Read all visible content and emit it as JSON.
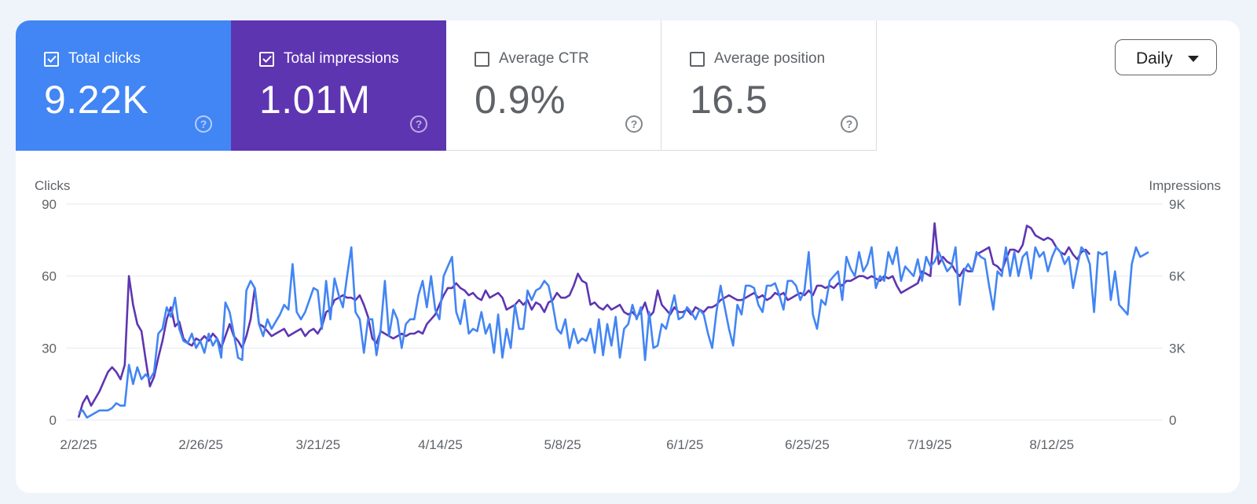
{
  "tiles": [
    {
      "label": "Total clicks",
      "value": "9.22K",
      "active": true,
      "color": "#4285f4"
    },
    {
      "label": "Total impressions",
      "value": "1.01M",
      "active": true,
      "color": "#5e35b1"
    },
    {
      "label": "Average CTR",
      "value": "0.9%",
      "active": false,
      "color": "#ffffff"
    },
    {
      "label": "Average position",
      "value": "16.5",
      "active": false,
      "color": "#ffffff"
    }
  ],
  "icons": {
    "checkbox": "checkbox-icon",
    "help": "help-icon",
    "dropdown": "caret-down-icon"
  },
  "help_glyph": "?",
  "granularity": {
    "selected": "Daily"
  },
  "chart_data": {
    "type": "line",
    "x_start": "2/2/25",
    "x_end": "8/31/25",
    "x_ticks": [
      "2/2/25",
      "2/26/25",
      "3/21/25",
      "4/14/25",
      "5/8/25",
      "6/1/25",
      "6/25/25",
      "7/19/25",
      "8/12/25"
    ],
    "left_axis": {
      "title": "Clicks",
      "ticks": [
        "0",
        "30",
        "60",
        "90"
      ],
      "range": [
        0,
        90
      ]
    },
    "right_axis": {
      "title": "Impressions",
      "ticks": [
        "0",
        "3K",
        "6K",
        "9K"
      ],
      "range": [
        0,
        9000
      ]
    },
    "grid": true,
    "colors": {
      "clicks": "#4285f4",
      "impressions": "#5e35b1"
    },
    "series": [
      {
        "name": "Total clicks",
        "axis": "left",
        "values": [
          3,
          4,
          1,
          2,
          3,
          4,
          4,
          4,
          5,
          7,
          6,
          6,
          23,
          15,
          22,
          17,
          19,
          17,
          20,
          36,
          38,
          47,
          43,
          51,
          38,
          33,
          32,
          36,
          30,
          33,
          28,
          36,
          31,
          34,
          26,
          49,
          45,
          36,
          26,
          25,
          54,
          58,
          55,
          40,
          35,
          42,
          38,
          41,
          44,
          48,
          46,
          65,
          45,
          42,
          45,
          50,
          55,
          54,
          38,
          58,
          42,
          59,
          52,
          47,
          60,
          72,
          45,
          42,
          28,
          42,
          42,
          27,
          38,
          58,
          35,
          46,
          42,
          30,
          40,
          42,
          42,
          52,
          58,
          47,
          60,
          46,
          42,
          60,
          64,
          68,
          45,
          40,
          50,
          36,
          38,
          37,
          45,
          36,
          40,
          28,
          44,
          26,
          38,
          30,
          48,
          38,
          38,
          54,
          50,
          54,
          55,
          58,
          56,
          48,
          38,
          36,
          42,
          30,
          38,
          32,
          34,
          33,
          38,
          28,
          42,
          27,
          40,
          31,
          43,
          26,
          38,
          40,
          48,
          42,
          47,
          25,
          45,
          30,
          31,
          40,
          38,
          45,
          52,
          42,
          43,
          47,
          45,
          42,
          46,
          44,
          36,
          30,
          45,
          56,
          47,
          38,
          31,
          48,
          44,
          56,
          56,
          55,
          48,
          45,
          56,
          56,
          57,
          52,
          46,
          58,
          58,
          56,
          50,
          54,
          70,
          44,
          38,
          50,
          48,
          58,
          60,
          62,
          50,
          68,
          63,
          60,
          70,
          62,
          65,
          72,
          55,
          60,
          58,
          70,
          65,
          72,
          58,
          64,
          62,
          60,
          67,
          58,
          68,
          64,
          66,
          70,
          66,
          62,
          64,
          72,
          48,
          62,
          65,
          62,
          70,
          68,
          67,
          56,
          46,
          62,
          60,
          72,
          60,
          70,
          60,
          68,
          70,
          59,
          72,
          68,
          70,
          62,
          68,
          72,
          70,
          65,
          68,
          55,
          64,
          72,
          70,
          65,
          45,
          70,
          69,
          70,
          50,
          62,
          48,
          46,
          44,
          65,
          72,
          68,
          69,
          70
        ]
      },
      {
        "name": "Total impressions",
        "axis": "right",
        "values": [
          100,
          700,
          1000,
          600,
          900,
          1200,
          1600,
          2000,
          2200,
          2000,
          1700,
          2300,
          6000,
          4800,
          4000,
          3700,
          2500,
          1400,
          1800,
          2600,
          3300,
          4200,
          4700,
          3900,
          4100,
          3400,
          3200,
          3100,
          3400,
          3300,
          3500,
          3300,
          3600,
          3400,
          3000,
          3500,
          4000,
          3500,
          3300,
          3000,
          3500,
          4200,
          5500,
          4000,
          3900,
          3700,
          3500,
          3600,
          3700,
          3800,
          3500,
          3600,
          3700,
          3800,
          3500,
          3700,
          3800,
          3600,
          3900,
          4500,
          4600,
          5000,
          5100,
          5200,
          5100,
          5100,
          5000,
          5200,
          4800,
          4300,
          3400,
          3200,
          3700,
          3600,
          3500,
          3400,
          3500,
          3600,
          3500,
          3600,
          3600,
          3700,
          3600,
          4000,
          4200,
          4400,
          4800,
          5200,
          5500,
          5500,
          5700,
          5500,
          5400,
          5200,
          5300,
          5100,
          5000,
          5400,
          5100,
          5200,
          5300,
          5100,
          4600,
          4700,
          4800,
          5000,
          4800,
          5000,
          4600,
          4900,
          4800,
          4500,
          4900,
          5000,
          5300,
          5100,
          5100,
          5200,
          5600,
          6100,
          5800,
          5700,
          4800,
          4900,
          4700,
          4600,
          4800,
          4600,
          4700,
          4800,
          4500,
          4400,
          4500,
          4300,
          4500,
          4900,
          4300,
          4500,
          5400,
          4800,
          4600,
          4400,
          4700,
          4500,
          4500,
          4600,
          4400,
          4700,
          4600,
          4500,
          4700,
          4700,
          4800,
          5000,
          5100,
          5200,
          5100,
          5000,
          5000,
          5100,
          5200,
          5300,
          5100,
          5200,
          5000,
          5100,
          5300,
          5200,
          5300,
          5000,
          5100,
          5200,
          5300,
          5200,
          5400,
          5200,
          5600,
          5600,
          5500,
          5600,
          5500,
          5700,
          5600,
          5800,
          5800,
          5900,
          6000,
          6000,
          5900,
          6000,
          5900,
          5800,
          6000,
          5900,
          6000,
          5600,
          5300,
          5400,
          5500,
          5600,
          5700,
          6200,
          6100,
          6000,
          8200,
          6500,
          6800,
          6600,
          6500,
          6200,
          6000,
          6300,
          6200,
          6200,
          6900,
          7000,
          7100,
          7200,
          6500,
          6400,
          6200,
          6700,
          7100,
          7100,
          7000,
          7300,
          8100,
          8000,
          7700,
          7600,
          7500,
          7600,
          7500,
          7200,
          7000,
          6900,
          7200,
          6900,
          6700,
          7000,
          7100,
          6900
        ]
      }
    ]
  }
}
